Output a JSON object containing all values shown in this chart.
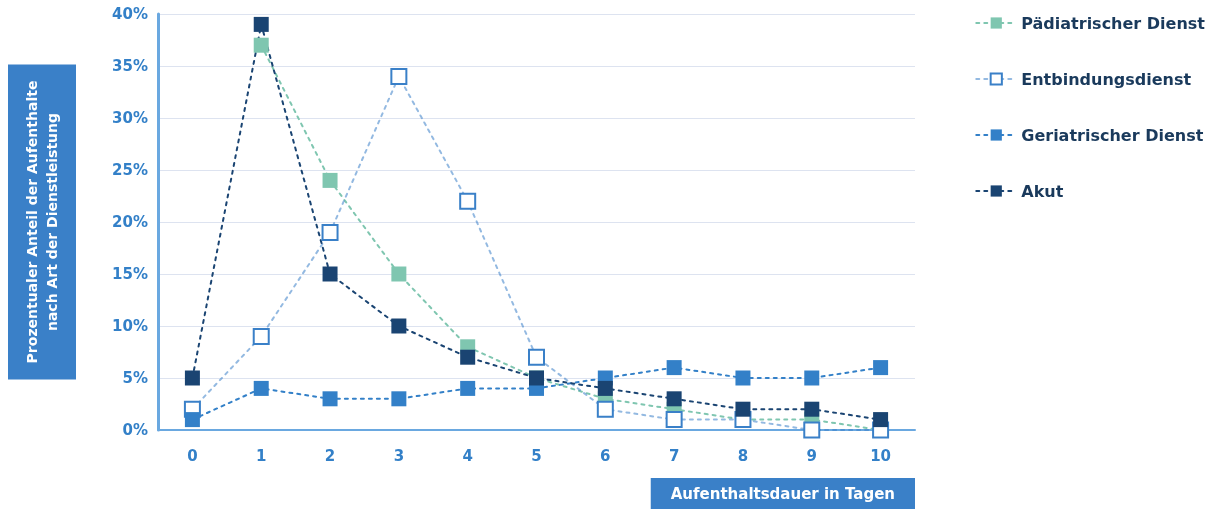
{
  "chart_data": {
    "type": "line",
    "xlabel": "Aufenthaltsdauer in Tagen",
    "ylabel": "Prozentualer Anteil der Aufenthalte nach Art der Dienstleistung",
    "categories": [
      "0",
      "1",
      "2",
      "3",
      "4",
      "5",
      "6",
      "7",
      "8",
      "9",
      "10"
    ],
    "series": [
      {
        "name": "Pädiatrischer Dienst",
        "color": "#7fc6b0",
        "values": [
          null,
          37,
          24,
          15,
          8,
          5,
          3,
          2,
          1,
          1,
          0
        ]
      },
      {
        "name": "Entbindungsdienst",
        "color": "#3a80c8",
        "marker": "square-open",
        "values": [
          2,
          9,
          19,
          34,
          22,
          7,
          2,
          1,
          1,
          0,
          0
        ]
      },
      {
        "name": "Geriatrischer Dienst",
        "color": "#3380c8",
        "values": [
          1,
          4,
          3,
          3,
          4,
          4,
          5,
          6,
          5,
          5,
          6
        ]
      },
      {
        "name": "Akut",
        "color": "#1a4472",
        "values": [
          5,
          39,
          15,
          10,
          7,
          5,
          4,
          3,
          2,
          2,
          1
        ]
      }
    ],
    "ylim": [
      0,
      40
    ],
    "yticks": [
      {
        "value": 0,
        "label": "0%"
      },
      {
        "value": 5,
        "label": "5%"
      },
      {
        "value": 10,
        "label": "10%"
      },
      {
        "value": 15,
        "label": "15%"
      },
      {
        "value": 20,
        "label": "20%"
      },
      {
        "value": 25,
        "label": "25%"
      },
      {
        "value": 30,
        "label": "30%"
      },
      {
        "value": 35,
        "label": "35%"
      },
      {
        "value": 40,
        "label": "40%"
      }
    ],
    "grid": "y",
    "legend": "right",
    "marker": "square",
    "line_style": "dotted"
  }
}
